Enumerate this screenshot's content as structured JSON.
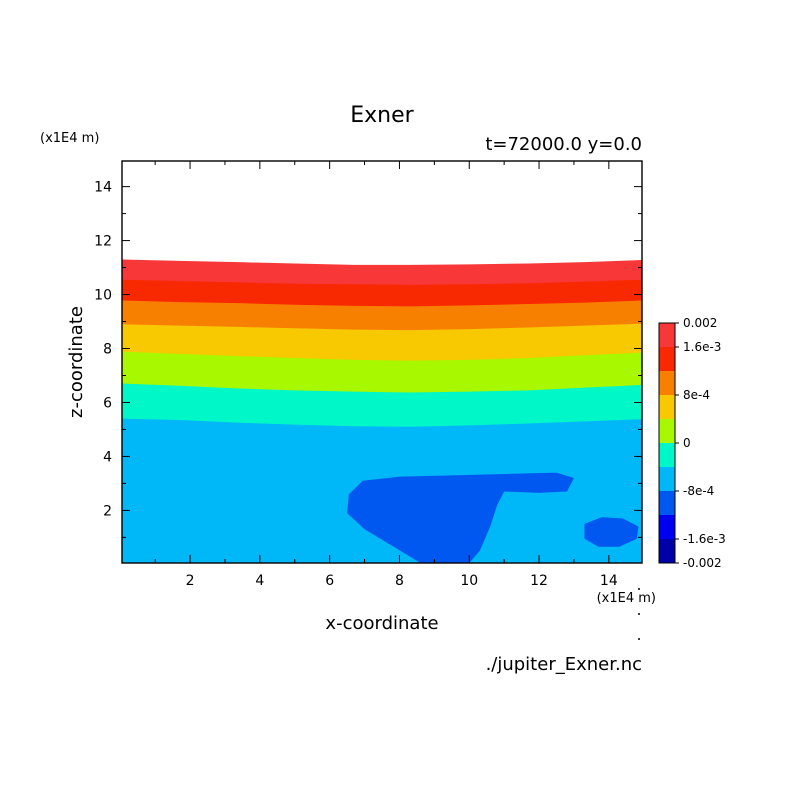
{
  "chart_data": {
    "type": "heatmap",
    "title": "Exner",
    "subtitle": "t=72000.0 y=0.0",
    "xlabel": "x-coordinate",
    "ylabel": "z-coordinate",
    "x_unit": "(x1E4 m)",
    "y_unit": "(x1E4 m)",
    "source_file": "./jupiter_Exner.nc",
    "xlim": [
      0.05,
      14.95
    ],
    "ylim": [
      0.05,
      14.95
    ],
    "x_ticks": [
      2,
      4,
      6,
      8,
      10,
      12,
      14
    ],
    "y_ticks": [
      2,
      4,
      6,
      8,
      10,
      12,
      14
    ],
    "colorbar": {
      "levels": [
        -0.002,
        -0.0016,
        -0.0012,
        -0.0008,
        -0.0004,
        0,
        0.0004,
        0.0008,
        0.0012,
        0.0016,
        0.002
      ],
      "colors": [
        "#0000a8",
        "#0000f0",
        "#0058f0",
        "#00b8f8",
        "#00f8c8",
        "#a8f800",
        "#f8c800",
        "#f88000",
        "#f82800",
        "#f83838"
      ],
      "tick_labels": [
        "-0.002",
        "-1.6e-3",
        "-8e-4",
        "0",
        "8e-4",
        "1.6e-3",
        "0.002"
      ],
      "tick_values": [
        -0.002,
        -0.0016,
        -0.0008,
        0,
        0.0008,
        0.0016,
        0.002
      ]
    },
    "level_bands": [
      {
        "level": -0.0004,
        "color": "#00b8f8",
        "upper_z": [
          5.4,
          5.35,
          5.25,
          5.18,
          5.12,
          5.1,
          5.15,
          5.22,
          5.3,
          5.38
        ]
      },
      {
        "level": 0,
        "color": "#00f8c8",
        "upper_z": [
          6.7,
          6.62,
          6.52,
          6.45,
          6.4,
          6.37,
          6.4,
          6.45,
          6.55,
          6.65
        ]
      },
      {
        "level": 0.0004,
        "color": "#a8f800",
        "upper_z": [
          7.88,
          7.8,
          7.72,
          7.65,
          7.58,
          7.55,
          7.58,
          7.65,
          7.75,
          7.85
        ]
      },
      {
        "level": 0.0008,
        "color": "#f8c800",
        "upper_z": [
          8.9,
          8.85,
          8.8,
          8.75,
          8.7,
          8.68,
          8.72,
          8.78,
          8.85,
          8.92
        ]
      },
      {
        "level": 0.0012,
        "color": "#f88000",
        "upper_z": [
          9.78,
          9.72,
          9.68,
          9.62,
          9.58,
          9.56,
          9.6,
          9.65,
          9.7,
          9.78
        ]
      },
      {
        "level": 0.0016,
        "color": "#f82800",
        "upper_z": [
          10.55,
          10.5,
          10.45,
          10.4,
          10.38,
          10.36,
          10.38,
          10.42,
          10.48,
          10.55
        ]
      },
      {
        "level": 0.002,
        "color": "#f83838",
        "upper_z": [
          11.3,
          11.25,
          11.2,
          11.15,
          11.1,
          11.1,
          11.12,
          11.15,
          11.2,
          11.28
        ]
      }
    ],
    "band_x": [
      0.05,
      1.7,
      3.4,
      5.0,
      6.7,
      8.3,
      10.0,
      11.7,
      13.3,
      14.95
    ],
    "background_band": {
      "level": -0.0008,
      "color": "#00b8f8"
    },
    "regions": [
      {
        "level": -0.0008,
        "color": "#0058f0",
        "points": [
          [
            6.95,
            3.1
          ],
          [
            8.0,
            3.25
          ],
          [
            9.5,
            3.3
          ],
          [
            11.0,
            3.35
          ],
          [
            12.5,
            3.4
          ],
          [
            13.0,
            3.2
          ],
          [
            12.8,
            2.7
          ],
          [
            12.0,
            2.65
          ],
          [
            11.0,
            2.7
          ],
          [
            10.8,
            2.2
          ],
          [
            10.6,
            1.4
          ],
          [
            10.3,
            0.5
          ],
          [
            10.0,
            0.05
          ],
          [
            8.6,
            0.05
          ],
          [
            7.9,
            0.6
          ],
          [
            7.0,
            1.3
          ],
          [
            6.5,
            1.9
          ],
          [
            6.55,
            2.6
          ]
        ]
      },
      {
        "level": -0.0008,
        "color": "#0058f0",
        "points": [
          [
            13.3,
            1.5
          ],
          [
            13.8,
            1.75
          ],
          [
            14.4,
            1.7
          ],
          [
            14.85,
            1.4
          ],
          [
            14.8,
            0.95
          ],
          [
            14.3,
            0.65
          ],
          [
            13.7,
            0.65
          ],
          [
            13.3,
            0.95
          ]
        ]
      }
    ]
  }
}
